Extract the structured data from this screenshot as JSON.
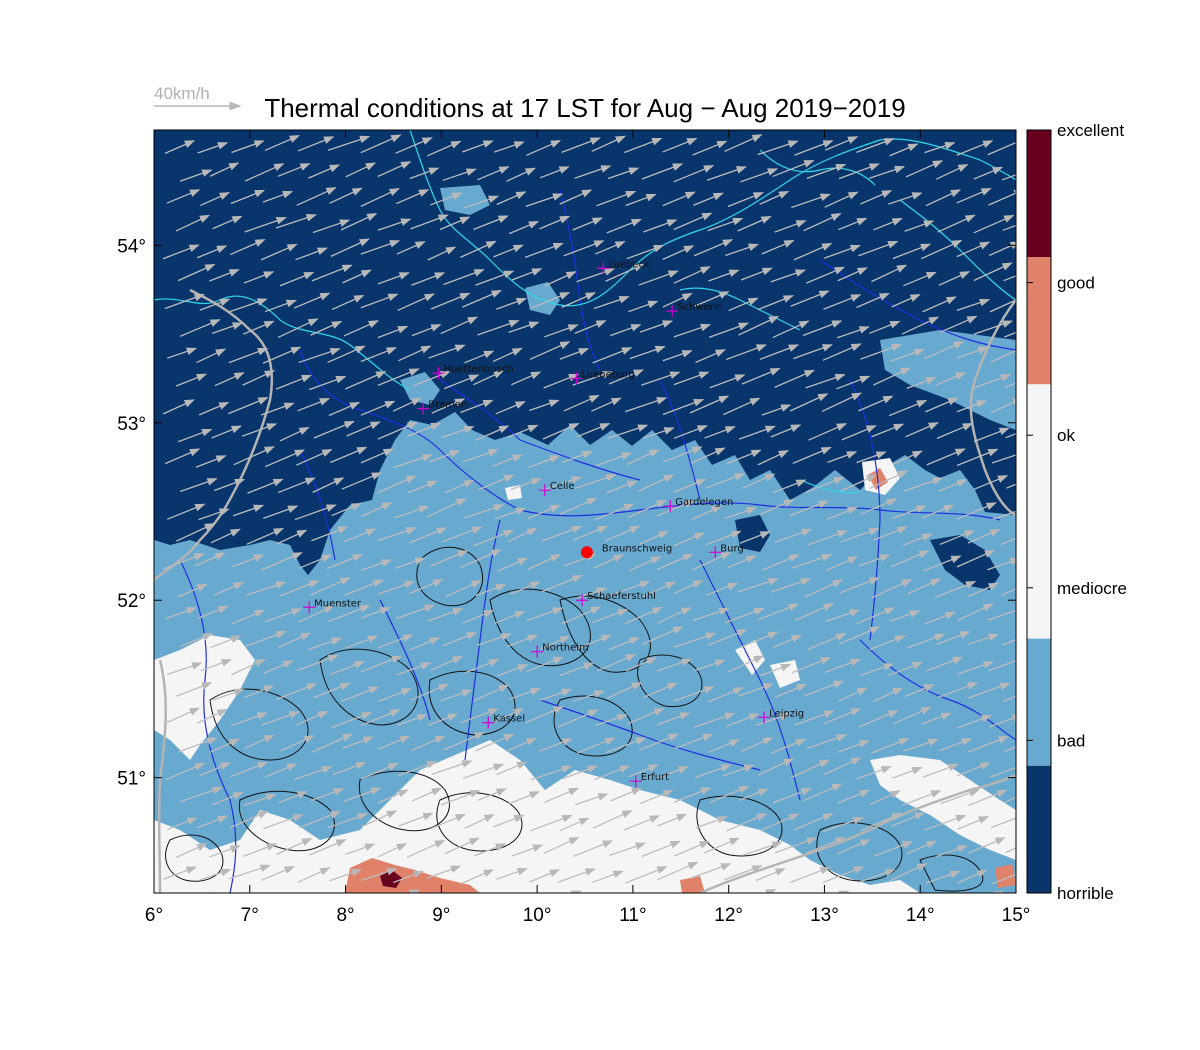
{
  "title": "Thermal conditions at 17 LST for Aug − Aug  2019−2019",
  "wind_scale": {
    "label": "40km/h",
    "color": "#b8b8b8"
  },
  "marker": {
    "name": "Braunschweig",
    "lon": 10.52,
    "lat": 52.27,
    "color": "#ff0000"
  },
  "map": {
    "lon_range": [
      6.0,
      15.0
    ],
    "lat_range": [
      50.35,
      54.65
    ],
    "lon_ticks": [
      "6°",
      "7°",
      "8°",
      "9°",
      "10°",
      "11°",
      "12°",
      "13°",
      "14°",
      "15°"
    ],
    "lat_ticks": [
      "51°",
      "52°",
      "53°",
      "54°"
    ],
    "lat_tick_values": [
      51,
      52,
      53,
      54
    ],
    "wind_direction": "from WSW",
    "cities": [
      {
        "name": "Luebeck",
        "lon": 10.69,
        "lat": 53.87
      },
      {
        "name": "Schwerin",
        "lon": 11.41,
        "lat": 53.63
      },
      {
        "name": "Huettenbusch",
        "lon": 8.97,
        "lat": 53.28
      },
      {
        "name": "Lueneburg",
        "lon": 10.41,
        "lat": 53.25
      },
      {
        "name": "Bremen",
        "lon": 8.81,
        "lat": 53.08
      },
      {
        "name": "Celle",
        "lon": 10.08,
        "lat": 52.62
      },
      {
        "name": "Gardelegen",
        "lon": 11.39,
        "lat": 52.53
      },
      {
        "name": "Braunschweig",
        "lon": 10.52,
        "lat": 52.27
      },
      {
        "name": "Burg",
        "lon": 11.86,
        "lat": 52.27
      },
      {
        "name": "Muenster",
        "lon": 7.62,
        "lat": 51.96
      },
      {
        "name": "Schaeferstuhl",
        "lon": 10.47,
        "lat": 52.0
      },
      {
        "name": "Northeim",
        "lon": 10.0,
        "lat": 51.71
      },
      {
        "name": "Kassel",
        "lon": 9.49,
        "lat": 51.31
      },
      {
        "name": "Leipzig",
        "lon": 12.37,
        "lat": 51.34
      },
      {
        "name": "Erfurt",
        "lon": 11.03,
        "lat": 50.98
      }
    ]
  },
  "colorbar": {
    "levels": [
      {
        "label": "excellent",
        "color": "#67001f"
      },
      {
        "label": "good",
        "color": "#e0826a"
      },
      {
        "label": "ok",
        "color": "#f5f5f5"
      },
      {
        "label": "mediocre",
        "color": "#68a9d0"
      },
      {
        "label": "bad",
        "color": "#08356b"
      },
      {
        "label": "horrible",
        "color": ""
      }
    ],
    "bands": [
      "#67001f",
      "#e0826a",
      "#f5f5f5",
      "#f5f5f5",
      "#68a9d0",
      "#08356b"
    ]
  },
  "legend_colors": {
    "horrible": "#08356b",
    "bad": "#68a9d0",
    "mediocre": "#f5f5f5",
    "good": "#e0826a",
    "excellent": "#67001f"
  }
}
